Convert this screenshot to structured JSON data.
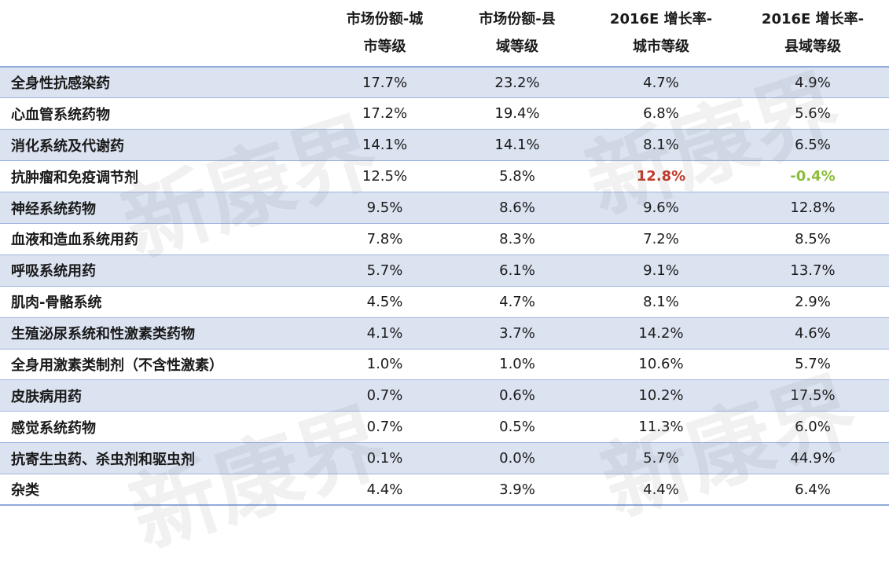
{
  "chart_data": {
    "type": "table",
    "columns": [
      "",
      "市场份额-城市等级",
      "市场份额-县域等级",
      "2016E 增长率-城市等级",
      "2016E 增长率-县域等级"
    ],
    "header_lines": [
      [
        "",
        ""
      ],
      [
        "市场份额-城",
        "市等级"
      ],
      [
        "市场份额-县",
        "域等级"
      ],
      [
        "2016E 增长率-",
        "城市等级"
      ],
      [
        "2016E 增长率-",
        "县域等级"
      ]
    ],
    "rows": [
      {
        "category": "全身性抗感染药",
        "values": [
          "17.7%",
          "23.2%",
          "4.7%",
          "4.9%"
        ]
      },
      {
        "category": "心血管系统药物",
        "values": [
          "17.2%",
          "19.4%",
          "6.8%",
          "5.6%"
        ]
      },
      {
        "category": "消化系统及代谢药",
        "values": [
          "14.1%",
          "14.1%",
          "8.1%",
          "6.5%"
        ]
      },
      {
        "category": "抗肿瘤和免疫调节剂",
        "values": [
          "12.5%",
          "5.8%",
          "12.8%",
          "-0.4%"
        ]
      },
      {
        "category": "神经系统药物",
        "values": [
          "9.5%",
          "8.6%",
          "9.6%",
          "12.8%"
        ]
      },
      {
        "category": "血液和造血系统用药",
        "values": [
          "7.8%",
          "8.3%",
          "7.2%",
          "8.5%"
        ]
      },
      {
        "category": "呼吸系统用药",
        "values": [
          "5.7%",
          "6.1%",
          "9.1%",
          "13.7%"
        ]
      },
      {
        "category": "肌肉-骨骼系统",
        "values": [
          "4.5%",
          "4.7%",
          "8.1%",
          "2.9%"
        ]
      },
      {
        "category": "生殖泌尿系统和性激素类药物",
        "values": [
          "4.1%",
          "3.7%",
          "14.2%",
          "4.6%"
        ]
      },
      {
        "category": "全身用激素类制剂（不含性激素）",
        "values": [
          "1.0%",
          "1.0%",
          "10.6%",
          "5.7%"
        ]
      },
      {
        "category": "皮肤病用药",
        "values": [
          "0.7%",
          "0.6%",
          "10.2%",
          "17.5%"
        ]
      },
      {
        "category": "感觉系统药物",
        "values": [
          "0.7%",
          "0.5%",
          "11.3%",
          "6.0%"
        ]
      },
      {
        "category": "抗寄生虫药、杀虫剂和驱虫剂",
        "values": [
          "0.1%",
          "0.0%",
          "5.7%",
          "44.9%"
        ]
      },
      {
        "category": "杂类",
        "values": [
          "4.4%",
          "3.9%",
          "4.4%",
          "6.4%"
        ]
      }
    ],
    "highlights": [
      {
        "row": 3,
        "col": 2,
        "color": "#c0392b"
      },
      {
        "row": 3,
        "col": 3,
        "color": "#8bbd3a"
      }
    ]
  },
  "watermark": {
    "text": "新康界"
  },
  "colors": {
    "row_stripe": "#dbe3f1",
    "border": "#8eaadb",
    "highlight_red": "#c0392b",
    "highlight_green": "#8bbd3a"
  }
}
